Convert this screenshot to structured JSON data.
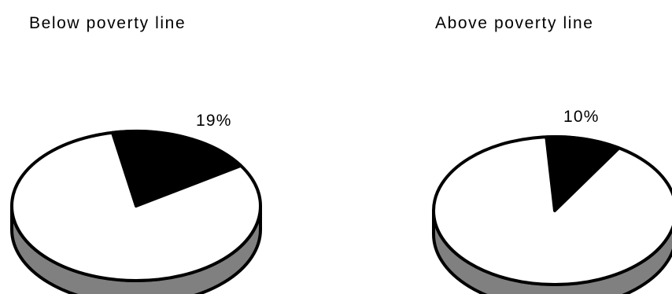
{
  "chart_data": [
    {
      "type": "pie",
      "title": "Below poverty line",
      "slices": [
        {
          "value": 19,
          "label": "19%",
          "color": "#000000"
        },
        {
          "value": 81,
          "label": "",
          "color": "#ffffff"
        }
      ]
    },
    {
      "type": "pie",
      "title": "Above poverty  line",
      "slices": [
        {
          "value": 10,
          "label": "10%",
          "color": "#000000"
        },
        {
          "value": 90,
          "label": "",
          "color": "#ffffff"
        }
      ]
    }
  ],
  "colors": {
    "side": "#808080",
    "outline": "#000000",
    "background": "#ffffff"
  }
}
